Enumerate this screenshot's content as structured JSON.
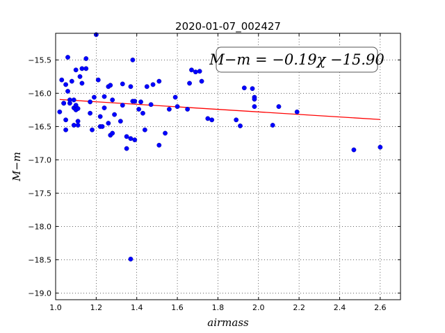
{
  "chart_data": {
    "type": "scatter",
    "title": "2020-01-07_002427",
    "xlabel": "airmass",
    "ylabel": "M−m",
    "xlim": [
      1.0,
      2.7
    ],
    "ylim": [
      -19.1,
      -15.1
    ],
    "x_ticks": [
      1.0,
      1.2,
      1.4,
      1.6,
      1.8,
      2.0,
      2.2,
      2.4,
      2.6
    ],
    "x_tick_labels": [
      "1.0",
      "1.2",
      "1.4",
      "1.6",
      "1.8",
      "2.0",
      "2.2",
      "2.4",
      "2.6"
    ],
    "y_ticks": [
      -15.5,
      -16.0,
      -16.5,
      -17.0,
      -17.5,
      -18.0,
      -18.5,
      -19.0
    ],
    "y_tick_labels": [
      "−15.5",
      "−16.0",
      "−16.5",
      "−17.0",
      "−17.5",
      "−18.0",
      "−18.5",
      "−19.0"
    ],
    "grid": true,
    "point_color": "#0000ff",
    "fit_color": "#ff0000",
    "annotation": "M−m = −0.19χ −15.90",
    "fit": {
      "slope": -0.19,
      "intercept": -15.9,
      "x_range": [
        1.02,
        2.6
      ]
    },
    "points": [
      [
        1.02,
        -16.28
      ],
      [
        1.03,
        -15.8
      ],
      [
        1.04,
        -16.15
      ],
      [
        1.04,
        -16.15
      ],
      [
        1.05,
        -15.87
      ],
      [
        1.05,
        -16.55
      ],
      [
        1.05,
        -16.4
      ],
      [
        1.06,
        -15.46
      ],
      [
        1.06,
        -15.97
      ],
      [
        1.07,
        -16.15
      ],
      [
        1.07,
        -16.1
      ],
      [
        1.08,
        -15.82
      ],
      [
        1.09,
        -16.48
      ],
      [
        1.09,
        -16.1
      ],
      [
        1.09,
        -16.22
      ],
      [
        1.1,
        -16.2
      ],
      [
        1.1,
        -16.25
      ],
      [
        1.1,
        -16.18
      ],
      [
        1.1,
        -15.65
      ],
      [
        1.11,
        -16.23
      ],
      [
        1.11,
        -16.42
      ],
      [
        1.11,
        -16.48
      ],
      [
        1.12,
        -15.75
      ],
      [
        1.13,
        -15.85
      ],
      [
        1.13,
        -15.63
      ],
      [
        1.15,
        -15.48
      ],
      [
        1.15,
        -15.63
      ],
      [
        1.17,
        -16.13
      ],
      [
        1.17,
        -16.3
      ],
      [
        1.18,
        -16.55
      ],
      [
        1.19,
        -16.06
      ],
      [
        1.2,
        -15.12
      ],
      [
        1.21,
        -15.8
      ],
      [
        1.22,
        -16.35
      ],
      [
        1.22,
        -16.5
      ],
      [
        1.23,
        -16.5
      ],
      [
        1.24,
        -16.22
      ],
      [
        1.24,
        -16.05
      ],
      [
        1.26,
        -15.9
      ],
      [
        1.26,
        -16.45
      ],
      [
        1.27,
        -16.63
      ],
      [
        1.27,
        -15.88
      ],
      [
        1.28,
        -16.1
      ],
      [
        1.28,
        -16.6
      ],
      [
        1.29,
        -16.32
      ],
      [
        1.32,
        -16.42
      ],
      [
        1.33,
        -15.86
      ],
      [
        1.33,
        -16.18
      ],
      [
        1.35,
        -16.65
      ],
      [
        1.35,
        -16.83
      ],
      [
        1.37,
        -18.49
      ],
      [
        1.37,
        -15.9
      ],
      [
        1.37,
        -16.68
      ],
      [
        1.38,
        -16.12
      ],
      [
        1.38,
        -15.5
      ],
      [
        1.39,
        -16.12
      ],
      [
        1.39,
        -16.7
      ],
      [
        1.41,
        -16.24
      ],
      [
        1.42,
        -16.13
      ],
      [
        1.43,
        -16.3
      ],
      [
        1.44,
        -16.55
      ],
      [
        1.45,
        -15.9
      ],
      [
        1.47,
        -16.17
      ],
      [
        1.48,
        -15.87
      ],
      [
        1.51,
        -15.82
      ],
      [
        1.51,
        -16.78
      ],
      [
        1.54,
        -16.6
      ],
      [
        1.56,
        -16.24
      ],
      [
        1.59,
        -16.06
      ],
      [
        1.6,
        -16.2
      ],
      [
        1.65,
        -16.24
      ],
      [
        1.66,
        -15.85
      ],
      [
        1.67,
        -15.65
      ],
      [
        1.69,
        -15.68
      ],
      [
        1.71,
        -15.67
      ],
      [
        1.72,
        -15.82
      ],
      [
        1.75,
        -16.38
      ],
      [
        1.77,
        -16.4
      ],
      [
        1.89,
        -16.4
      ],
      [
        1.91,
        -16.49
      ],
      [
        1.93,
        -15.92
      ],
      [
        1.97,
        -15.93
      ],
      [
        1.98,
        -16.06
      ],
      [
        1.98,
        -16.09
      ],
      [
        1.98,
        -16.2
      ],
      [
        2.07,
        -16.48
      ],
      [
        2.1,
        -16.2
      ],
      [
        2.19,
        -16.28
      ],
      [
        2.47,
        -16.85
      ],
      [
        2.6,
        -16.81
      ]
    ]
  }
}
